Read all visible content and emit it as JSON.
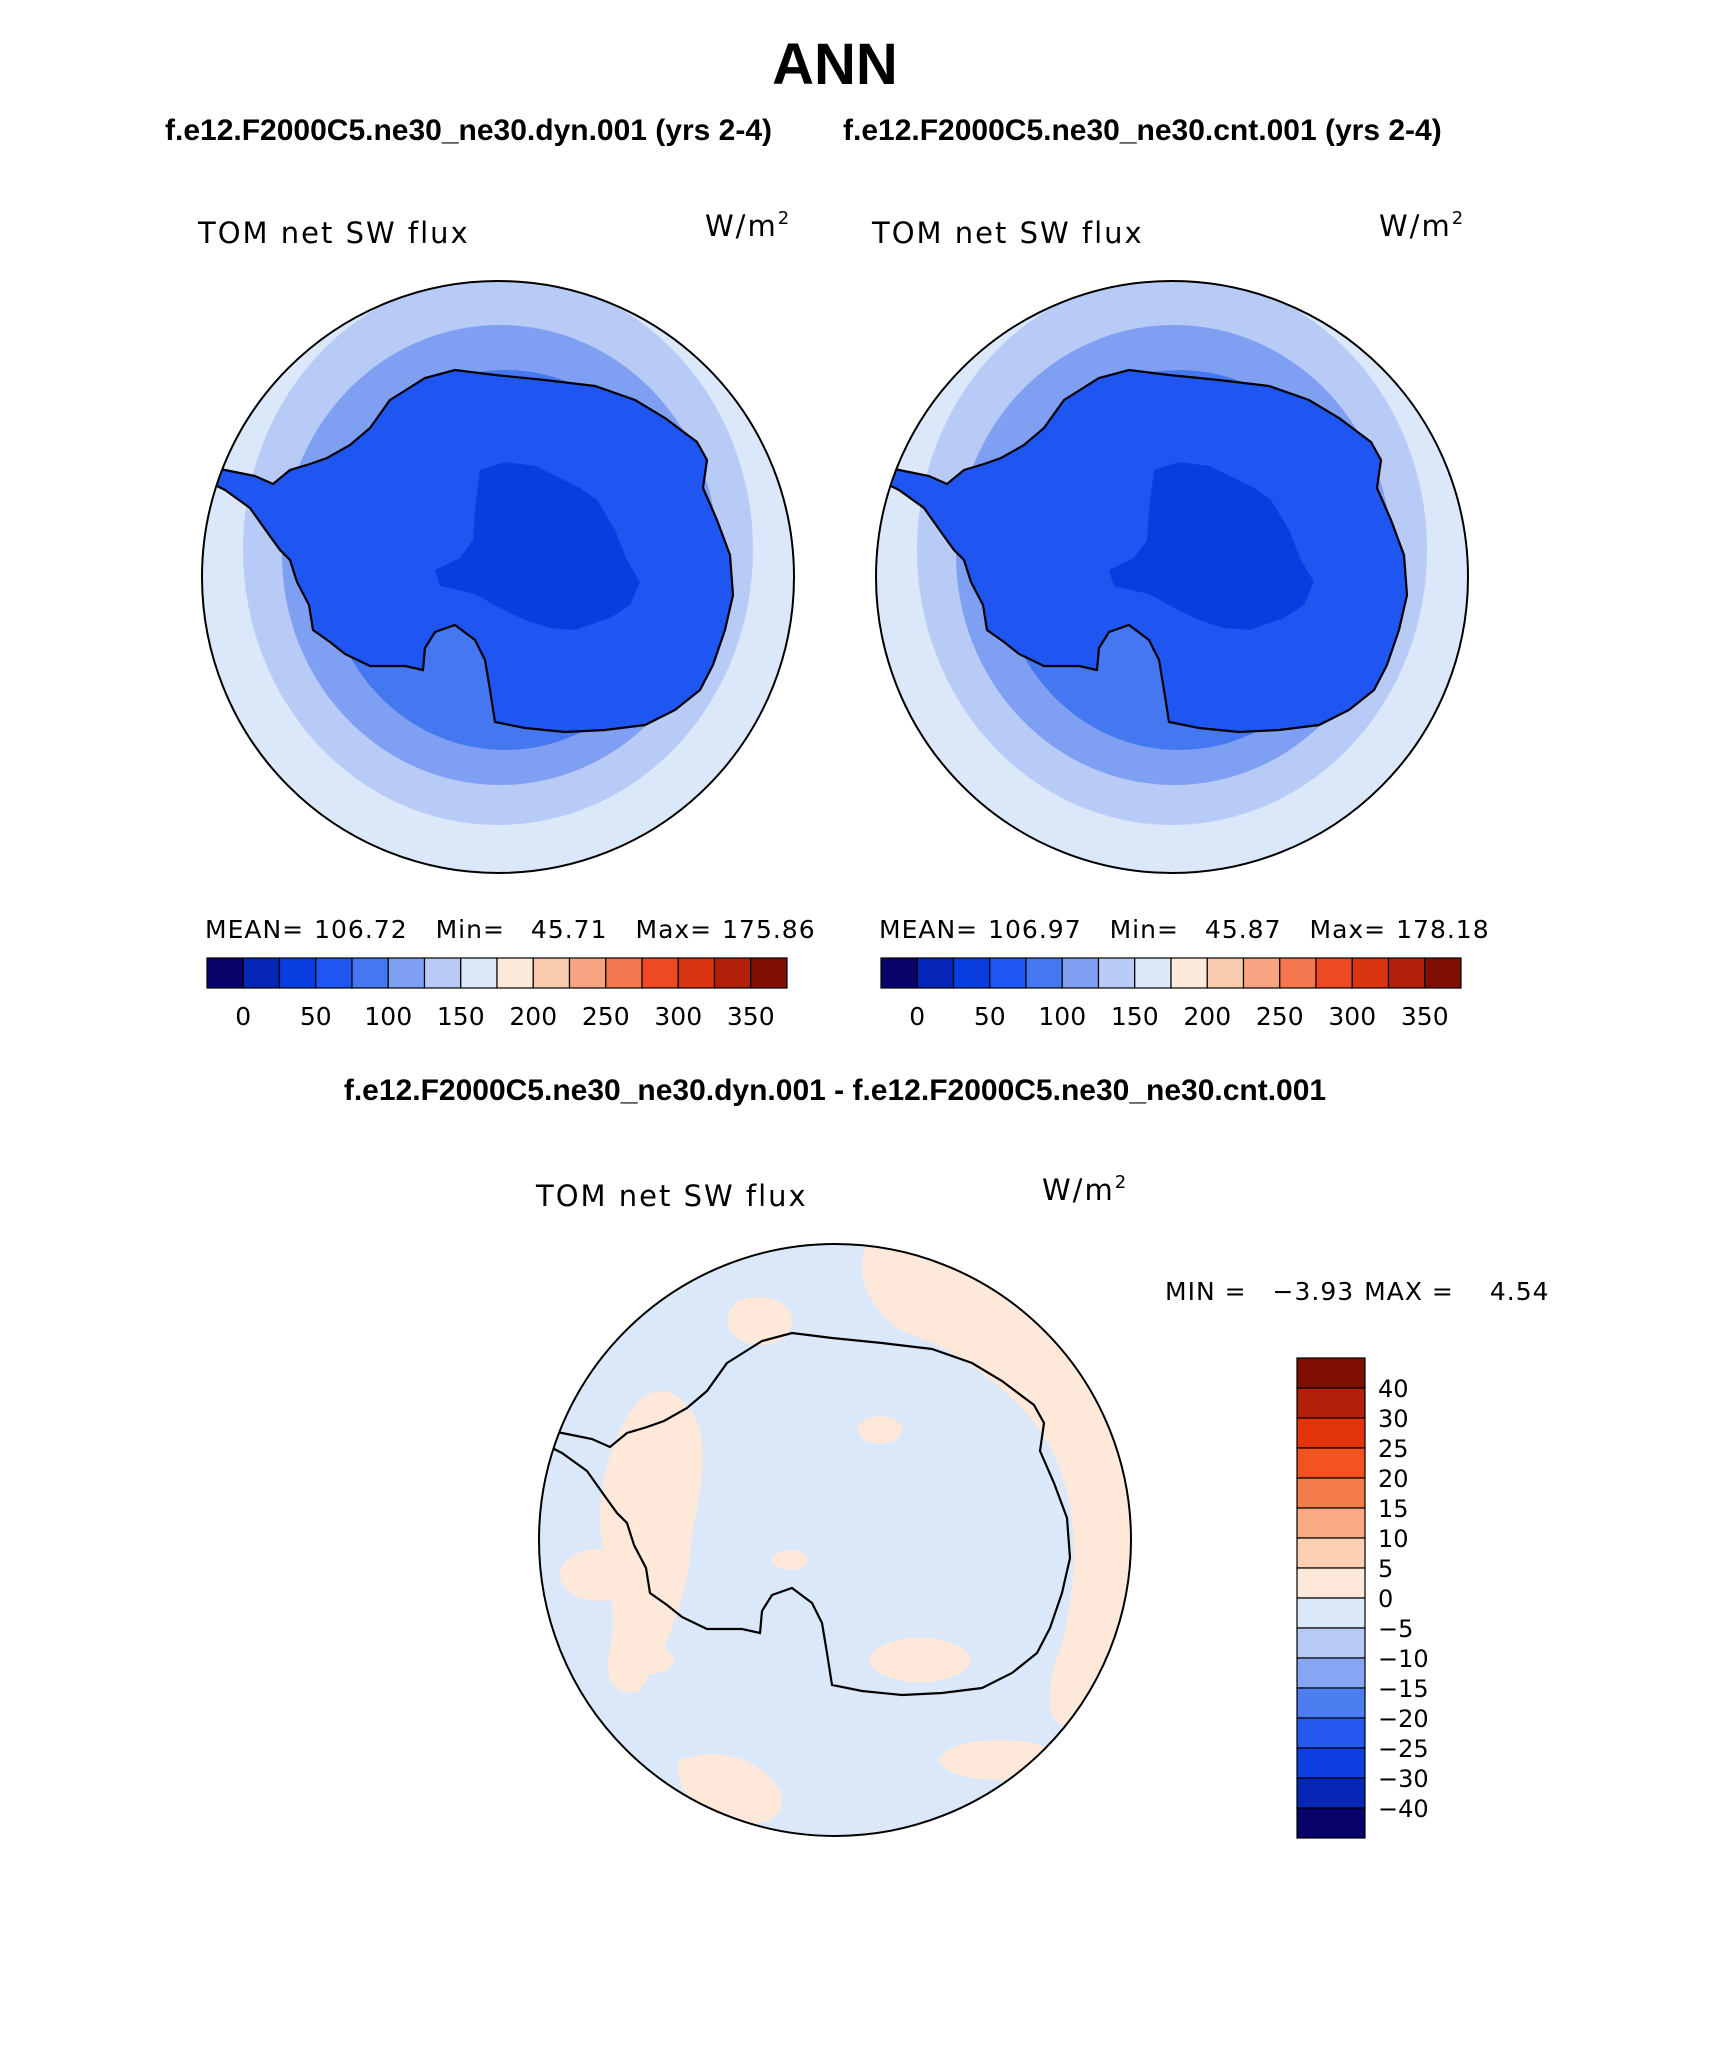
{
  "title": "ANN",
  "subtitle_left": "f.e12.F2000C5.ne30_ne30.dyn.001 (yrs 2-4)",
  "subtitle_right": "f.e12.F2000C5.ne30_ne30.cnt.001 (yrs 2-4)",
  "diff_title": "f.e12.F2000C5.ne30_ne30.dyn.001 - f.e12.F2000C5.ne30_ne30.cnt.001",
  "panels": [
    {
      "variable": "TOM net SW flux",
      "units_base": "W/m",
      "units_exp": "2",
      "stats": {
        "mean_label": "MEAN=",
        "mean": "106.72",
        "min_label": "Min=",
        "min": "45.71",
        "max_label": "Max=",
        "max": "175.86"
      }
    },
    {
      "variable": "TOM net SW flux",
      "units_base": "W/m",
      "units_exp": "2",
      "stats": {
        "mean_label": "MEAN=",
        "mean": "106.97",
        "min_label": "Min=",
        "min": "45.87",
        "max_label": "Max=",
        "max": "178.18"
      }
    }
  ],
  "main_colorbar": {
    "colors": [
      "#08036b",
      "#0626b8",
      "#0a3de0",
      "#1f55f0",
      "#4578f0",
      "#7e9ff2",
      "#b7cbf6",
      "#dde9fb",
      "#fdeadb",
      "#fbcbb0",
      "#f8a483",
      "#f47750",
      "#ee4a22",
      "#d93310",
      "#b2200a",
      "#7f0f05"
    ],
    "labels": [
      "0",
      "50",
      "100",
      "150",
      "200",
      "250",
      "300",
      "350"
    ]
  },
  "diff_panel": {
    "variable": "TOM net SW flux",
    "units_base": "W/m",
    "units_exp": "2",
    "stats": {
      "min_label": "MIN =",
      "min": "−3.93",
      "max_label": "MAX =",
      "max": "4.54"
    }
  },
  "diff_colorbar": {
    "colors_top_to_bottom": [
      "#7f0f05",
      "#b2200a",
      "#e3340e",
      "#f2531f",
      "#f57b4a",
      "#f9aa85",
      "#fbd0b2",
      "#fde8d9",
      "#dbe8fa",
      "#b6caf5",
      "#86a5f2",
      "#4d7ef1",
      "#2659ef",
      "#0c3ee0",
      "#0826b5",
      "#08036b"
    ],
    "labels": [
      "40",
      "30",
      "25",
      "20",
      "15",
      "10",
      "5",
      "0",
      "−5",
      "−10",
      "−15",
      "−20",
      "−25",
      "−30",
      "−40"
    ]
  },
  "map_colors": {
    "ocean_outer": "#dbe8fa",
    "ring_1": "#b7cbf6",
    "ring_2": "#7e9ff2",
    "ring_3": "#4578f0",
    "continent": "#1f55f0",
    "interior": "#0a3de0",
    "diff_negative": "#dbe8fa",
    "diff_positive": "#fde8d9"
  }
}
